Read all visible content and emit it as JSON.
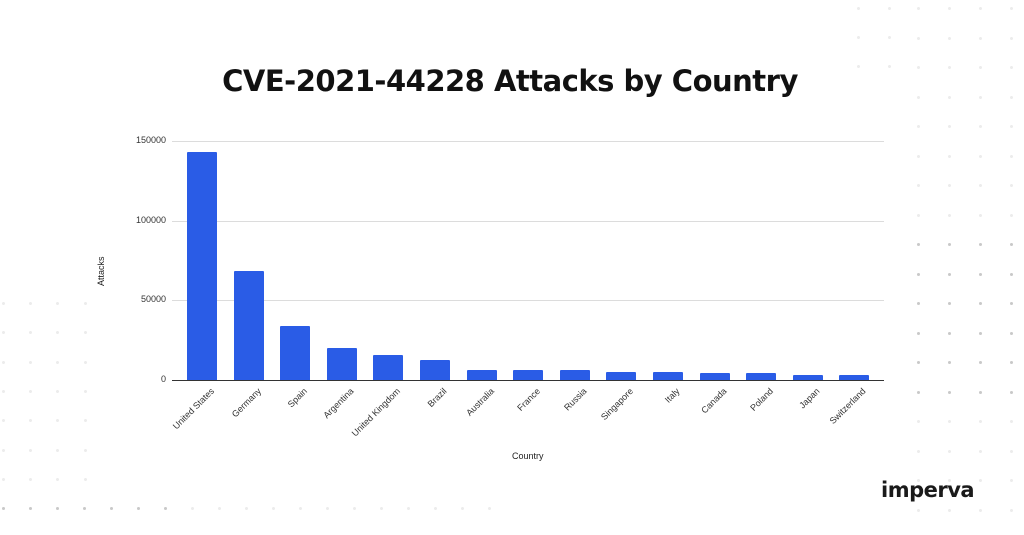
{
  "chart_data": {
    "type": "bar",
    "title": "CVE-2021-44228 Attacks by Country",
    "xlabel": "Country",
    "ylabel": "Attacks",
    "ylim": [
      0,
      150000
    ],
    "yticks": [
      0,
      50000,
      100000,
      150000
    ],
    "ytick_labels": [
      "0",
      "50000",
      "100000",
      "150000"
    ],
    "grid": true,
    "legend": null,
    "bar_color": "#2a5ce6",
    "categories": [
      "United States",
      "Germany",
      "Spain",
      "Argentina",
      "United Kingdom",
      "Brazil",
      "Australia",
      "France",
      "Russia",
      "Singapore",
      "Italy",
      "Canada",
      "Poland",
      "Japan",
      "Switzerland"
    ],
    "values": [
      143000,
      68500,
      34200,
      20000,
      15700,
      12500,
      6500,
      6500,
      6000,
      5200,
      4800,
      4300,
      4300,
      3300,
      3300
    ]
  },
  "brand": {
    "logo_text": "imperva"
  }
}
